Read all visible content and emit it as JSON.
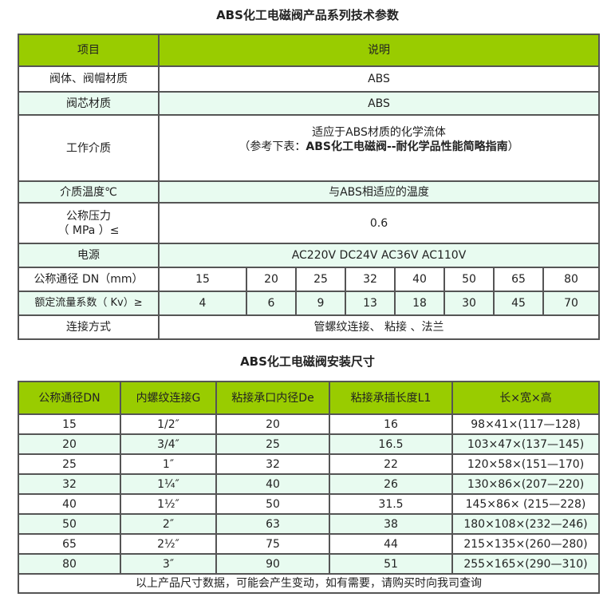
{
  "params": {
    "title": "ABS化工电磁阀产品系列技术参数",
    "header": [
      "项目",
      "说明"
    ],
    "body_material": {
      "label": "阀体、阀帽材质",
      "value": "ABS"
    },
    "core_material": {
      "label": "阀芯材质",
      "value": "ABS"
    },
    "medium": {
      "label": "工作介质",
      "line1": "适应于ABS材质的化学流体",
      "line2_prefix": "（参考下表：",
      "line2_bold": "ABS化工电磁阀--耐化学品性能简略指南",
      "line2_suffix": "）"
    },
    "temperature": {
      "label": "介质温度℃",
      "value": "与ABS相适应的温度"
    },
    "pressure": {
      "label1": "公称压力",
      "label2": "（ MPa ）≤",
      "value": "0.6"
    },
    "power": {
      "label": "电源",
      "value": "AC220V DC24V AC36V AC110V"
    },
    "dn": {
      "label": "公称通径 DN（mm）",
      "values": [
        "15",
        "20",
        "25",
        "32",
        "40",
        "50",
        "65",
        "80"
      ]
    },
    "kv": {
      "label": "额定流量系数（ Kv）≥",
      "values": [
        "4",
        "6",
        "9",
        "13",
        "18",
        "30",
        "45",
        "70"
      ]
    },
    "connection": {
      "label": "连接方式",
      "value": "管螺纹连接、 粘接 、法兰"
    }
  },
  "dims": {
    "title": "ABS化工电磁阀安装尺寸",
    "columns": [
      "公称通径DN",
      "内螺纹连接G",
      "粘接承口内径De",
      "粘接承插长度L1",
      "长×宽×高"
    ],
    "rows": [
      [
        "15",
        "1/2″",
        "20",
        "16",
        "98×41×(117—128)"
      ],
      [
        "20",
        "3/4″",
        "25",
        "16.5",
        "103×47×(137—145)"
      ],
      [
        "25",
        "1″",
        "32",
        "22",
        "120×58×(151—170)"
      ],
      [
        "32",
        "1¼″",
        "40",
        "26",
        "130×86×(207—220)"
      ],
      [
        "40",
        "1½″",
        "50",
        "31.5",
        "145×86× (215—228)"
      ],
      [
        "50",
        "2″",
        "63",
        "38",
        "180×108×(232—246)"
      ],
      [
        "65",
        "2½″",
        "75",
        "44",
        "215×135×(260—280)"
      ],
      [
        "80",
        "3″",
        "90",
        "51",
        "255×165×(290—310)"
      ]
    ],
    "footer": "以上产品尺寸数据，可能会产生变动，如有需要，请购买时向我司查询"
  },
  "colors": {
    "header_green": "#99cc00",
    "alt_row": "#e8fbf0",
    "border": "#555555"
  }
}
